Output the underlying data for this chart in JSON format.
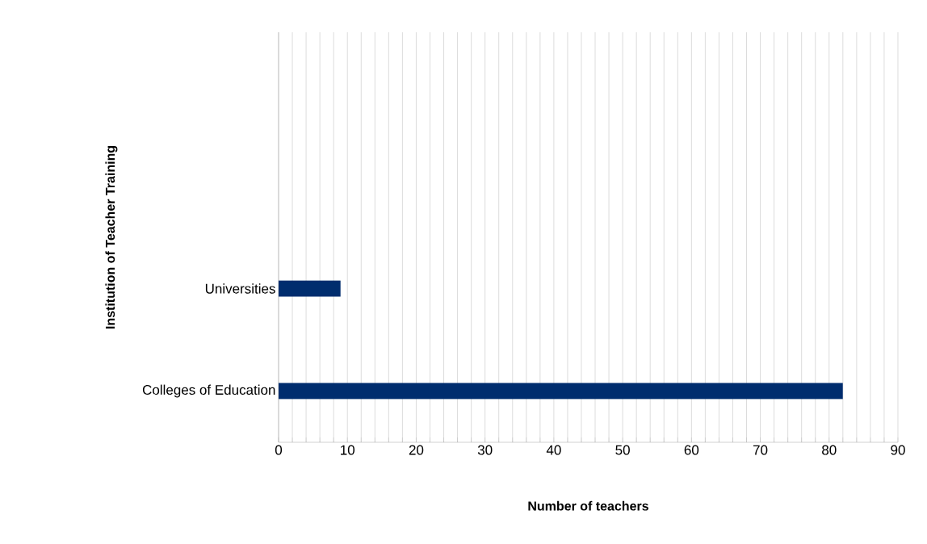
{
  "chart_data": {
    "type": "bar",
    "orientation": "horizontal",
    "xlabel": "Number of teachers",
    "ylabel": "Institution of Teacher Training",
    "categories": [
      null,
      null,
      "Universities",
      "Colleges of Education"
    ],
    "values": [
      null,
      null,
      9,
      82
    ],
    "color": "#002d6e",
    "xlim": [
      0,
      90
    ],
    "xticks": [
      0,
      {
        "value": 2,
        "label": null
      },
      {
        "value": 4,
        "label": null
      },
      {
        "value": 6,
        "label": null
      },
      {
        "value": 8,
        "label": null
      },
      10,
      {
        "value": 12,
        "label": null
      },
      {
        "value": 14,
        "label": null
      },
      {
        "value": 16,
        "label": null
      },
      {
        "value": 18,
        "label": null
      },
      20,
      {
        "value": 22,
        "label": null
      },
      {
        "value": 24,
        "label": null
      },
      {
        "value": 26,
        "label": null
      },
      {
        "value": 28,
        "label": null
      },
      30,
      {
        "value": 32,
        "label": null
      },
      {
        "value": 34,
        "label": null
      },
      {
        "value": 36,
        "label": null
      },
      {
        "value": 38,
        "label": null
      },
      40,
      {
        "value": 42,
        "label": null
      },
      {
        "value": 44,
        "label": null
      },
      {
        "value": 46,
        "label": null
      },
      {
        "value": 48,
        "label": null
      },
      50,
      {
        "value": 52,
        "label": null
      },
      {
        "value": 54,
        "label": null
      },
      {
        "value": 56,
        "label": null
      },
      {
        "value": 58,
        "label": null
      },
      60,
      {
        "value": 62,
        "label": null
      },
      {
        "value": 64,
        "label": null
      },
      {
        "value": 66,
        "label": null
      },
      {
        "value": 68,
        "label": null
      },
      70,
      {
        "value": 72,
        "label": null
      },
      {
        "value": 74,
        "label": null
      },
      {
        "value": 76,
        "label": null
      },
      {
        "value": 78,
        "label": null
      },
      80,
      {
        "value": 82,
        "label": null
      },
      {
        "value": 84,
        "label": null
      },
      {
        "value": 86,
        "label": null
      },
      {
        "value": 88,
        "label": null
      },
      90
    ],
    "grid": "x"
  }
}
